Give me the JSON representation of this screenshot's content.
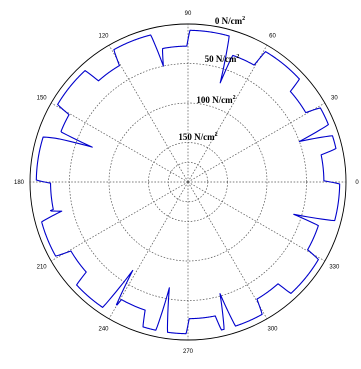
{
  "chart_data": {
    "type": "polar-line",
    "title": "",
    "angle_unit": "degrees",
    "angle_ticks": [
      "0",
      "30",
      "60",
      "90",
      "120",
      "150",
      "180",
      "210",
      "240",
      "270",
      "300",
      "330"
    ],
    "radial_axis": {
      "direction": "inward",
      "unit": "N/cm",
      "unit_superscript": "2",
      "range": [
        0,
        200
      ],
      "ticks": [
        {
          "value": 0,
          "label": "0 N/cm"
        },
        {
          "value": 50,
          "label": "50 N/cm"
        },
        {
          "value": 100,
          "label": "100 N/cm"
        },
        {
          "value": 150,
          "label": "150 N/cm"
        }
      ]
    },
    "grid": true,
    "series": [
      {
        "color": "#0000cc",
        "baseline_pressure": 8,
        "pattern": "12 notched teeth around the circle with sharp inward spikes",
        "teeth": [
          {
            "center_deg": 6,
            "depth": 20
          },
          {
            "center_deg": 36,
            "depth": 19
          },
          {
            "center_deg": 66,
            "depth": 22
          },
          {
            "center_deg": 96,
            "depth": 20
          },
          {
            "center_deg": 126,
            "depth": 21
          },
          {
            "center_deg": 156,
            "depth": 19
          },
          {
            "center_deg": 186,
            "depth": 18
          },
          {
            "center_deg": 216,
            "depth": 20
          },
          {
            "center_deg": 246,
            "depth": 21
          },
          {
            "center_deg": 276,
            "depth": 19
          },
          {
            "center_deg": 306,
            "depth": 20
          },
          {
            "center_deg": 336,
            "depth": 18
          }
        ],
        "spikes": [
          {
            "angle_deg": 72,
            "depth": 60
          },
          {
            "angle_deg": 102,
            "depth": 42
          },
          {
            "angle_deg": 160,
            "depth": 63
          },
          {
            "angle_deg": 193,
            "depth": 28
          },
          {
            "angle_deg": 238,
            "depth": 60
          },
          {
            "angle_deg": 260,
            "depth": 56
          },
          {
            "angle_deg": 286,
            "depth": 45
          },
          {
            "angle_deg": 20,
            "depth": 42
          },
          {
            "angle_deg": 343,
            "depth": 52
          }
        ]
      }
    ]
  }
}
